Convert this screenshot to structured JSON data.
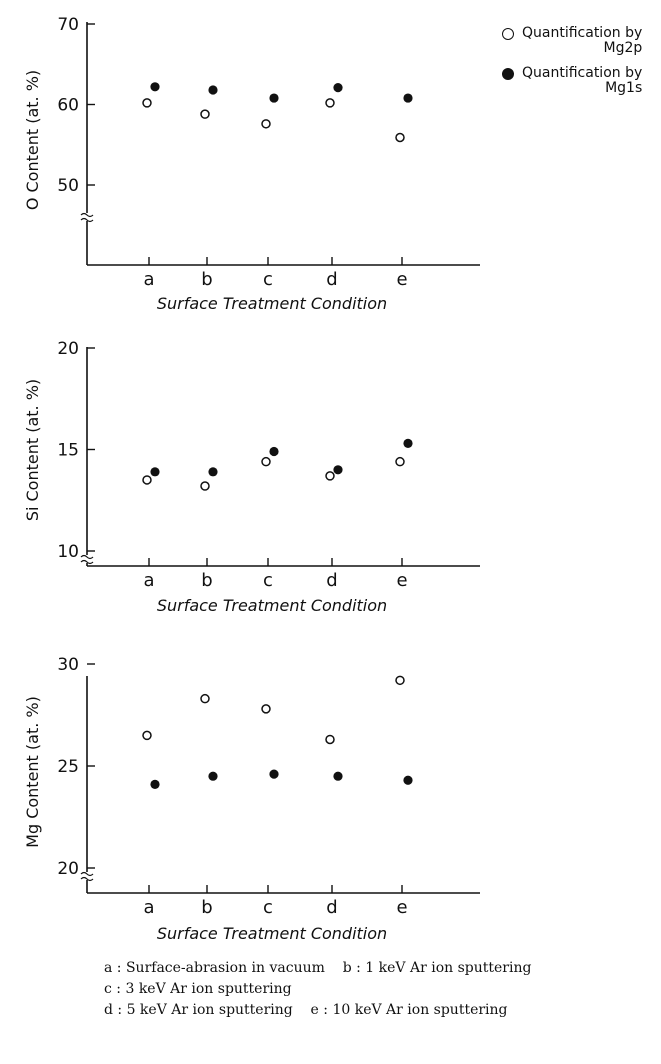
{
  "legend": {
    "open": [
      "Quantification by",
      "Mg2p"
    ],
    "filled": [
      "Quantification by",
      "Mg1s"
    ]
  },
  "footnote": [
    "a : Surface-abrasion in vacuum    b : 1 keV Ar ion sputtering",
    "c : 3 keV Ar ion sputtering",
    "d : 5 keV Ar ion sputtering    e : 10 keV Ar ion sputtering"
  ],
  "chart_data": [
    {
      "type": "scatter",
      "ylabel": "O Content (at. %)",
      "xlabel": "Surface Treatment Condition",
      "categories": [
        "a",
        "b",
        "c",
        "d",
        "e"
      ],
      "yticks": [
        50,
        60,
        70
      ],
      "ylim": [
        50,
        70
      ],
      "axis_break": true,
      "series": [
        {
          "name": "Quantification by Mg2p",
          "marker": "open",
          "values": [
            60.2,
            58.8,
            57.6,
            60.2,
            55.9
          ]
        },
        {
          "name": "Quantification by Mg1s",
          "marker": "filled",
          "values": [
            62.2,
            61.8,
            60.8,
            62.1,
            60.8
          ]
        }
      ]
    },
    {
      "type": "scatter",
      "ylabel": "Si Content (at. %)",
      "xlabel": "Surface Treatment Condition",
      "categories": [
        "a",
        "b",
        "c",
        "d",
        "e"
      ],
      "yticks": [
        10,
        15,
        20
      ],
      "ylim": [
        10,
        20
      ],
      "axis_break": true,
      "series": [
        {
          "name": "Quantification by Mg2p",
          "marker": "open",
          "values": [
            13.5,
            13.2,
            14.4,
            13.7,
            14.4
          ]
        },
        {
          "name": "Quantification by Mg1s",
          "marker": "filled",
          "values": [
            13.9,
            13.9,
            14.9,
            14.0,
            15.3
          ]
        }
      ]
    },
    {
      "type": "scatter",
      "ylabel": "Mg Content (at. %)",
      "xlabel": "Surface Treatment Condition",
      "categories": [
        "a",
        "b",
        "c",
        "d",
        "e"
      ],
      "yticks": [
        20,
        25,
        30
      ],
      "ylim": [
        20,
        30
      ],
      "axis_break": true,
      "series": [
        {
          "name": "Quantification by Mg2p",
          "marker": "open",
          "values": [
            26.5,
            28.3,
            27.8,
            26.3,
            29.2
          ]
        },
        {
          "name": "Quantification by Mg1s",
          "marker": "filled",
          "values": [
            24.1,
            24.5,
            24.6,
            24.5,
            24.3
          ]
        }
      ]
    }
  ]
}
